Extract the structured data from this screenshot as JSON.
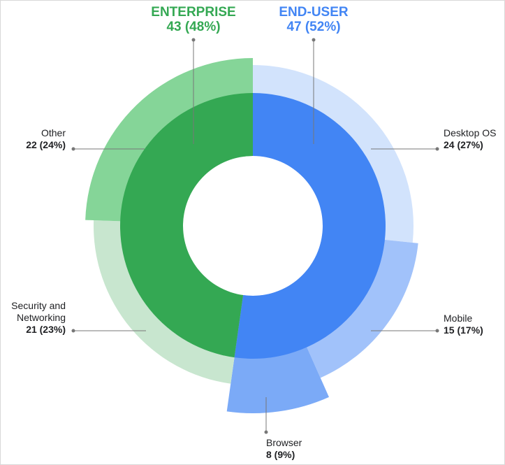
{
  "chart_data": {
    "type": "sunburst",
    "series": [
      {
        "name": "END-USER",
        "value": 47,
        "value_label": "47 (52%)",
        "color": "#4285f4",
        "children": [
          {
            "name": "Desktop OS",
            "value": 24,
            "value_label": "24 (27%)",
            "color": "#d2e3fc"
          },
          {
            "name": "Mobile",
            "value": 15,
            "value_label": "15 (17%)",
            "color": "#a1c2fa"
          },
          {
            "name": "Browser",
            "value": 8,
            "value_label": "8 (9%)",
            "color": "#7baaf7"
          }
        ]
      },
      {
        "name": "ENTERPRISE",
        "value": 43,
        "value_label": "43 (48%)",
        "color": "#34a853",
        "children": [
          {
            "name": "Security and Networking",
            "value": 21,
            "value_label": "21 (23%)",
            "color": "#c8e6cf"
          },
          {
            "name": "Other",
            "value": 22,
            "value_label": "22 (24%)",
            "color": "#85d598"
          }
        ]
      }
    ]
  }
}
